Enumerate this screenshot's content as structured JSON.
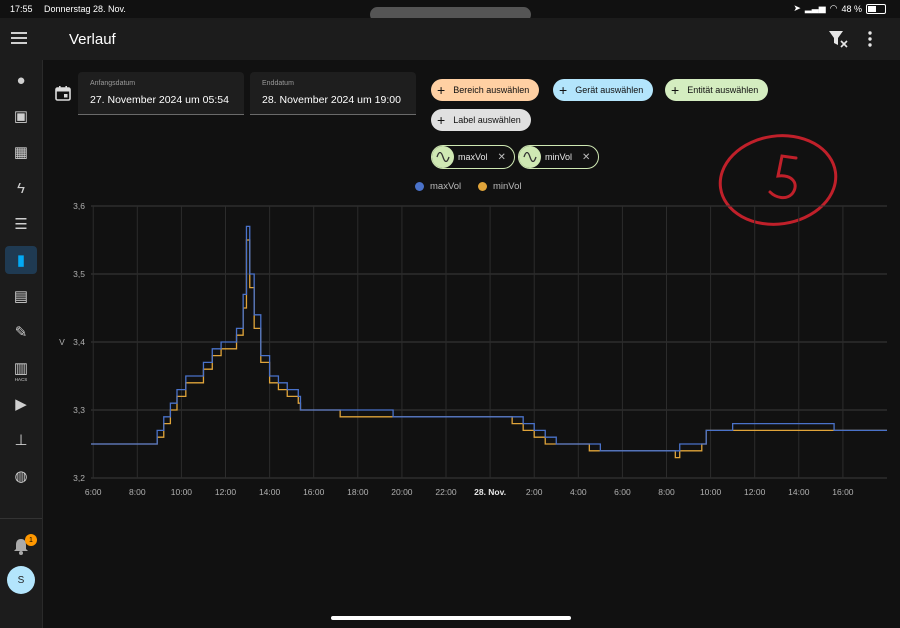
{
  "status_bar": {
    "time": "17:55",
    "date": "Donnerstag 28. Nov.",
    "battery_text": "48 %",
    "battery_level": 0.48
  },
  "sidebar": {
    "items": [
      {
        "icon": "person-icon"
      },
      {
        "icon": "person-card-icon"
      },
      {
        "icon": "dashboard-icon"
      },
      {
        "icon": "lightning-icon"
      },
      {
        "icon": "list-icon"
      },
      {
        "icon": "history-chart-icon",
        "active": true
      },
      {
        "icon": "calendar-icon"
      },
      {
        "icon": "wrench-icon"
      },
      {
        "icon": "store-icon",
        "label": "HACS"
      },
      {
        "icon": "media-icon"
      },
      {
        "icon": "network-icon"
      },
      {
        "icon": "database-icon"
      }
    ],
    "notifications_count": "1",
    "avatar_initial": "S"
  },
  "header": {
    "title": "Verlauf"
  },
  "filters": {
    "start_label": "Anfangsdatum",
    "start_value": "27. November 2024 um 05:54",
    "end_label": "Enddatum",
    "end_value": "28. November 2024 um 19:00",
    "chips": [
      {
        "label": "Bereich auswählen",
        "color": "#ffd0a3"
      },
      {
        "label": "Gerät auswählen",
        "color": "#b3e5fc"
      },
      {
        "label": "Entität auswählen",
        "color": "#d4edc0"
      },
      {
        "label": "Label auswählen",
        "color": "#e0e0e0"
      }
    ],
    "entities": [
      {
        "label": "maxVol"
      },
      {
        "label": "minVol"
      }
    ]
  },
  "chart_data": {
    "type": "line",
    "ylabel": "V",
    "ylim": [
      3.2,
      3.6
    ],
    "yticks": [
      "3,2",
      "3,3",
      "3,4",
      "3,5",
      "3,6"
    ],
    "x_range_hours": [
      5.9,
      42.0
    ],
    "x_ticks": [
      {
        "h": 6,
        "label": "6:00"
      },
      {
        "h": 8,
        "label": "8:00"
      },
      {
        "h": 10,
        "label": "10:00"
      },
      {
        "h": 12,
        "label": "12:00"
      },
      {
        "h": 14,
        "label": "14:00"
      },
      {
        "h": 16,
        "label": "16:00"
      },
      {
        "h": 18,
        "label": "18:00"
      },
      {
        "h": 20,
        "label": "20:00"
      },
      {
        "h": 22,
        "label": "22:00"
      },
      {
        "h": 24,
        "label": "28. Nov.",
        "bold": true
      },
      {
        "h": 26,
        "label": "2:00"
      },
      {
        "h": 28,
        "label": "4:00"
      },
      {
        "h": 30,
        "label": "6:00"
      },
      {
        "h": 32,
        "label": "8:00"
      },
      {
        "h": 34,
        "label": "10:00"
      },
      {
        "h": 36,
        "label": "12:00"
      },
      {
        "h": 38,
        "label": "14:00"
      },
      {
        "h": 40,
        "label": "16:00"
      }
    ],
    "grid": true,
    "legend_position": "top-center",
    "series": [
      {
        "name": "maxVol",
        "color": "#4a72c9",
        "points": [
          [
            5.9,
            3.25
          ],
          [
            8.7,
            3.25
          ],
          [
            8.9,
            3.27
          ],
          [
            9.2,
            3.29
          ],
          [
            9.5,
            3.31
          ],
          [
            9.8,
            3.33
          ],
          [
            10.2,
            3.35
          ],
          [
            10.6,
            3.35
          ],
          [
            11.0,
            3.37
          ],
          [
            11.4,
            3.39
          ],
          [
            11.8,
            3.4
          ],
          [
            12.2,
            3.4
          ],
          [
            12.5,
            3.42
          ],
          [
            12.8,
            3.47
          ],
          [
            12.95,
            3.57
          ],
          [
            13.1,
            3.5
          ],
          [
            13.3,
            3.44
          ],
          [
            13.6,
            3.38
          ],
          [
            14.0,
            3.35
          ],
          [
            14.4,
            3.34
          ],
          [
            14.8,
            3.33
          ],
          [
            15.3,
            3.32
          ],
          [
            15.4,
            3.3
          ],
          [
            17.4,
            3.3
          ],
          [
            19.4,
            3.3
          ],
          [
            19.6,
            3.29
          ],
          [
            25.0,
            3.29
          ],
          [
            25.5,
            3.28
          ],
          [
            26.0,
            3.27
          ],
          [
            26.5,
            3.26
          ],
          [
            27.0,
            3.25
          ],
          [
            28.5,
            3.25
          ],
          [
            29.0,
            3.24
          ],
          [
            32.0,
            3.24
          ],
          [
            32.4,
            3.24
          ],
          [
            32.6,
            3.25
          ],
          [
            33.6,
            3.25
          ],
          [
            33.8,
            3.27
          ],
          [
            34.6,
            3.27
          ],
          [
            35.0,
            3.28
          ],
          [
            37.5,
            3.28
          ],
          [
            38.0,
            3.28
          ],
          [
            39.0,
            3.28
          ],
          [
            39.6,
            3.27
          ],
          [
            42.0,
            3.27
          ]
        ]
      },
      {
        "name": "minVol",
        "color": "#e0a43a",
        "points": [
          [
            5.9,
            3.25
          ],
          [
            8.7,
            3.25
          ],
          [
            8.9,
            3.26
          ],
          [
            9.2,
            3.28
          ],
          [
            9.5,
            3.3
          ],
          [
            9.8,
            3.32
          ],
          [
            10.2,
            3.34
          ],
          [
            10.6,
            3.34
          ],
          [
            11.0,
            3.36
          ],
          [
            11.4,
            3.38
          ],
          [
            11.8,
            3.39
          ],
          [
            12.2,
            3.39
          ],
          [
            12.5,
            3.41
          ],
          [
            12.8,
            3.45
          ],
          [
            12.95,
            3.55
          ],
          [
            13.1,
            3.48
          ],
          [
            13.3,
            3.42
          ],
          [
            13.6,
            3.37
          ],
          [
            14.0,
            3.34
          ],
          [
            14.4,
            3.33
          ],
          [
            14.8,
            3.32
          ],
          [
            15.3,
            3.31
          ],
          [
            15.4,
            3.3
          ],
          [
            17.2,
            3.29
          ],
          [
            19.4,
            3.29
          ],
          [
            19.6,
            3.29
          ],
          [
            25.0,
            3.28
          ],
          [
            25.5,
            3.27
          ],
          [
            26.0,
            3.26
          ],
          [
            26.5,
            3.25
          ],
          [
            27.0,
            3.25
          ],
          [
            28.5,
            3.24
          ],
          [
            29.0,
            3.24
          ],
          [
            32.0,
            3.24
          ],
          [
            32.4,
            3.23
          ],
          [
            32.6,
            3.24
          ],
          [
            33.6,
            3.25
          ],
          [
            33.8,
            3.27
          ],
          [
            34.6,
            3.27
          ],
          [
            35.0,
            3.27
          ],
          [
            37.5,
            3.27
          ],
          [
            38.0,
            3.27
          ],
          [
            39.0,
            3.27
          ],
          [
            39.6,
            3.27
          ],
          [
            42.0,
            3.27
          ]
        ]
      }
    ]
  }
}
